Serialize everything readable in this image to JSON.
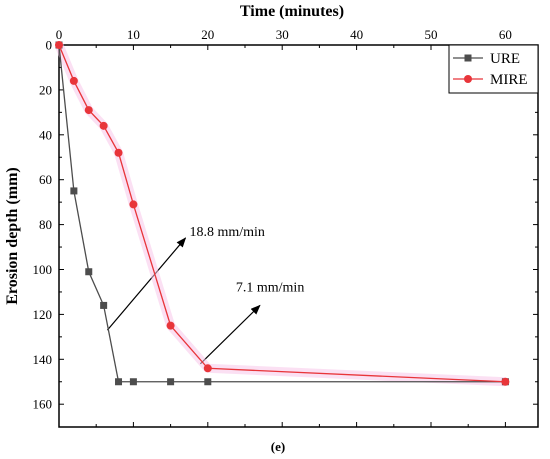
{
  "chart_data": {
    "type": "line",
    "xlabel": "Time (minutes)",
    "ylabel": "Erosion depth (mm)",
    "xlim": [
      0,
      65
    ],
    "ylim": [
      0,
      160
    ],
    "y_inverted": true,
    "x_axis_position": "top",
    "x_ticks": [
      "0",
      "10",
      "20",
      "30",
      "40",
      "50",
      "60"
    ],
    "y_ticks": [
      "0",
      "20",
      "40",
      "60",
      "80",
      "100",
      "120",
      "140",
      "160"
    ],
    "grid": false,
    "legend_position": "top-right",
    "series": [
      {
        "name": "URE",
        "color": "#4d4d4d",
        "marker": "square",
        "x": [
          0,
          2,
          4,
          6,
          8,
          10,
          15,
          20,
          60
        ],
        "y": [
          0,
          65,
          101,
          116,
          150,
          150,
          150,
          150,
          150
        ]
      },
      {
        "name": "MIRE",
        "color": "#e8353a",
        "marker": "circle",
        "x": [
          0,
          2,
          4,
          6,
          8,
          10,
          15,
          20,
          60
        ],
        "y": [
          0,
          16,
          29,
          36,
          48,
          71,
          125,
          144,
          150
        ]
      }
    ],
    "annotations": [
      {
        "text": "18.8 mm/min",
        "arrow_from": [
          6.5,
          127
        ],
        "arrow_to": [
          17,
          86
        ]
      },
      {
        "text": "7.1 mm/min",
        "arrow_from": [
          19,
          142
        ],
        "arrow_to": [
          27,
          116
        ]
      }
    ],
    "caption": "(e)"
  }
}
